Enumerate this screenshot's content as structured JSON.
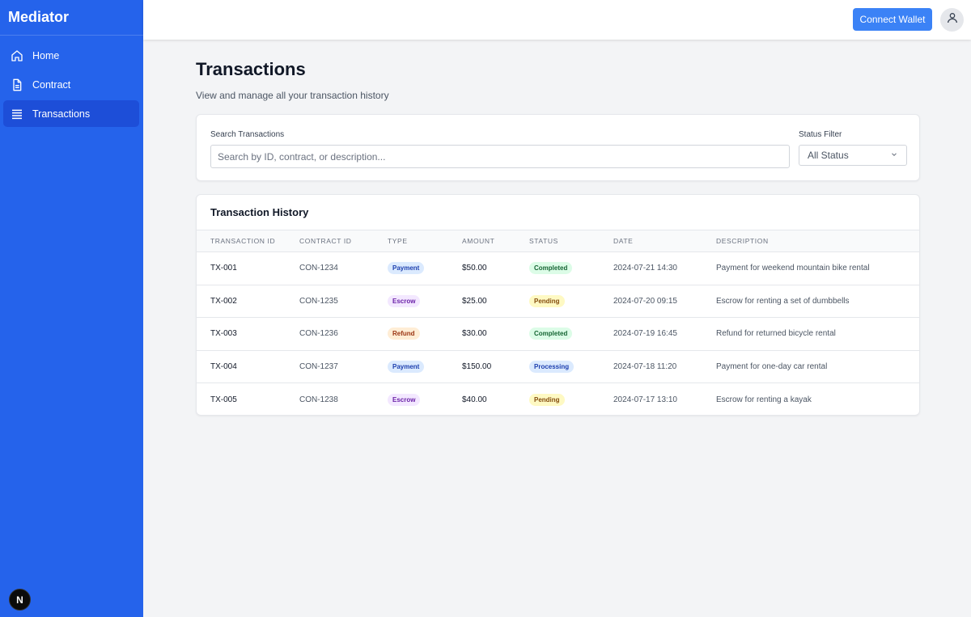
{
  "app": {
    "brand": "Mediator",
    "nav": [
      {
        "label": "Home",
        "icon": "home-icon",
        "active": false
      },
      {
        "label": "Contract",
        "icon": "document-icon",
        "active": false
      },
      {
        "label": "Transactions",
        "icon": "list-icon",
        "active": true
      }
    ],
    "footer_badge": "N"
  },
  "header": {
    "connect_label": "Connect Wallet"
  },
  "page": {
    "title": "Transactions",
    "subtitle": "View and manage all your transaction history"
  },
  "filters": {
    "search_label": "Search Transactions",
    "search_placeholder": "Search by ID, contract, or description...",
    "search_value": "",
    "status_label": "Status Filter",
    "status_value": "All Status"
  },
  "table": {
    "title": "Transaction History",
    "columns": [
      "Transaction ID",
      "Contract ID",
      "Type",
      "Amount",
      "Status",
      "Date",
      "Description"
    ],
    "rows": [
      {
        "id": "TX-001",
        "contract": "CON-1234",
        "type": "Payment",
        "amount": "$50.00",
        "status": "Completed",
        "date": "2024-07-21 14:30",
        "description": "Payment for weekend mountain bike rental"
      },
      {
        "id": "TX-002",
        "contract": "CON-1235",
        "type": "Escrow",
        "amount": "$25.00",
        "status": "Pending",
        "date": "2024-07-20 09:15",
        "description": "Escrow for renting a set of dumbbells"
      },
      {
        "id": "TX-003",
        "contract": "CON-1236",
        "type": "Refund",
        "amount": "$30.00",
        "status": "Completed",
        "date": "2024-07-19 16:45",
        "description": "Refund for returned bicycle rental"
      },
      {
        "id": "TX-004",
        "contract": "CON-1237",
        "type": "Payment",
        "amount": "$150.00",
        "status": "Processing",
        "date": "2024-07-18 11:20",
        "description": "Payment for one-day car rental"
      },
      {
        "id": "TX-005",
        "contract": "CON-1238",
        "type": "Escrow",
        "amount": "$40.00",
        "status": "Pending",
        "date": "2024-07-17 13:10",
        "description": "Escrow for renting a kayak"
      }
    ]
  },
  "colors": {
    "sidebar": "#2563eb",
    "sidebar_active": "#1d4ed8",
    "accent": "#3b82f6",
    "type": {
      "Payment": {
        "bg": "#dbeafe",
        "fg": "#1e40af"
      },
      "Escrow": {
        "bg": "#f3e8ff",
        "fg": "#6b21a8"
      },
      "Refund": {
        "bg": "#ffedd5",
        "fg": "#9a3412"
      }
    },
    "status": {
      "Completed": {
        "bg": "#dcfce7",
        "fg": "#166534"
      },
      "Pending": {
        "bg": "#fef9c3",
        "fg": "#854d0e"
      },
      "Processing": {
        "bg": "#dbeafe",
        "fg": "#1e40af"
      }
    }
  }
}
